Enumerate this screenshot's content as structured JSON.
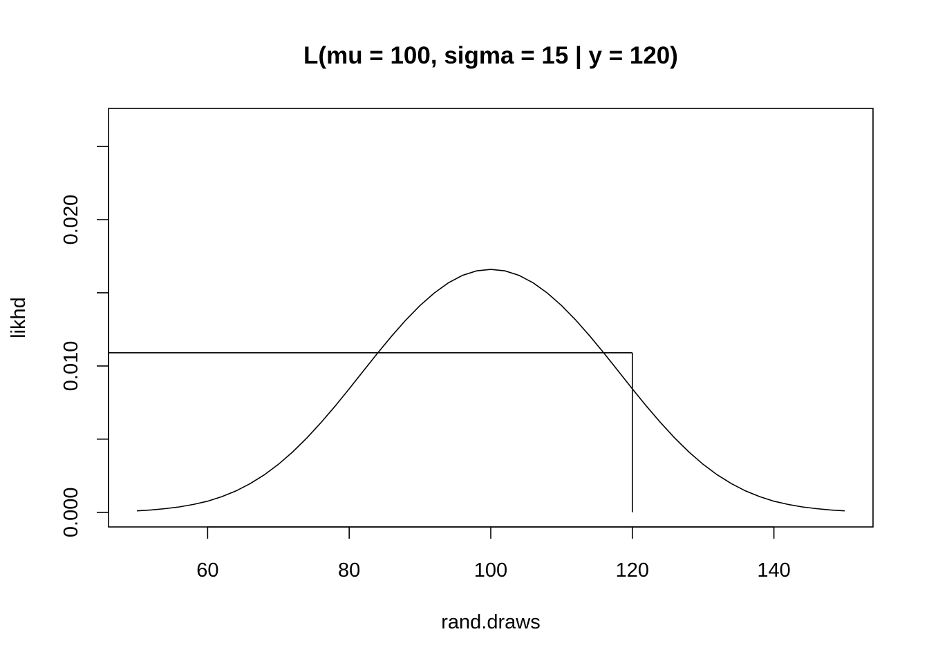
{
  "chart_data": {
    "type": "line",
    "title": "L(mu = 100, sigma = 15 | y = 120)",
    "xlabel": "rand.draws",
    "ylabel": "likhd",
    "xlim": [
      46,
      154
    ],
    "ylim": [
      -0.001,
      0.0276
    ],
    "x_ticks": [
      60,
      80,
      100,
      120,
      140
    ],
    "x_tick_labels": [
      "60",
      "80",
      "100",
      "120",
      "140"
    ],
    "y_ticks": [
      0.0,
      0.005,
      0.01,
      0.015,
      0.02,
      0.025
    ],
    "y_tick_labels": [
      "0.000",
      "",
      "0.010",
      "",
      "0.020",
      ""
    ],
    "grid": false,
    "series": [
      {
        "x": [
          50,
          52,
          54,
          56,
          58,
          60,
          62,
          64,
          66,
          68,
          70,
          72,
          74,
          76,
          78,
          80,
          82,
          84,
          86,
          88,
          90,
          92,
          94,
          96,
          98,
          100,
          102,
          104,
          106,
          108,
          110,
          112,
          114,
          116,
          118,
          120,
          122,
          124,
          126,
          128,
          130,
          132,
          134,
          136,
          138,
          140,
          142,
          144,
          146,
          148,
          150
        ],
        "y": [
          0.0001,
          0.00016,
          0.00025,
          0.00037,
          0.00054,
          0.00076,
          0.00107,
          0.00146,
          0.00196,
          0.00256,
          0.00328,
          0.00412,
          0.00507,
          0.00612,
          0.00725,
          0.00844,
          0.00966,
          0.01087,
          0.01204,
          0.01314,
          0.01413,
          0.01498,
          0.01568,
          0.01619,
          0.0165,
          0.0166,
          0.0165,
          0.01619,
          0.01568,
          0.01498,
          0.01413,
          0.01314,
          0.01204,
          0.01087,
          0.00966,
          0.00844,
          0.00725,
          0.00612,
          0.00507,
          0.00412,
          0.00328,
          0.00256,
          0.00196,
          0.00146,
          0.00107,
          0.00076,
          0.00054,
          0.00037,
          0.00025,
          0.00016,
          0.0001
        ]
      }
    ],
    "reference_lines": {
      "horizontal_y": 0.0109,
      "horizontal_from_x": 46,
      "horizontal_to_x": 120,
      "vertical_x": 120,
      "vertical_from_y": 0.0,
      "vertical_to_y": 0.0109
    }
  }
}
